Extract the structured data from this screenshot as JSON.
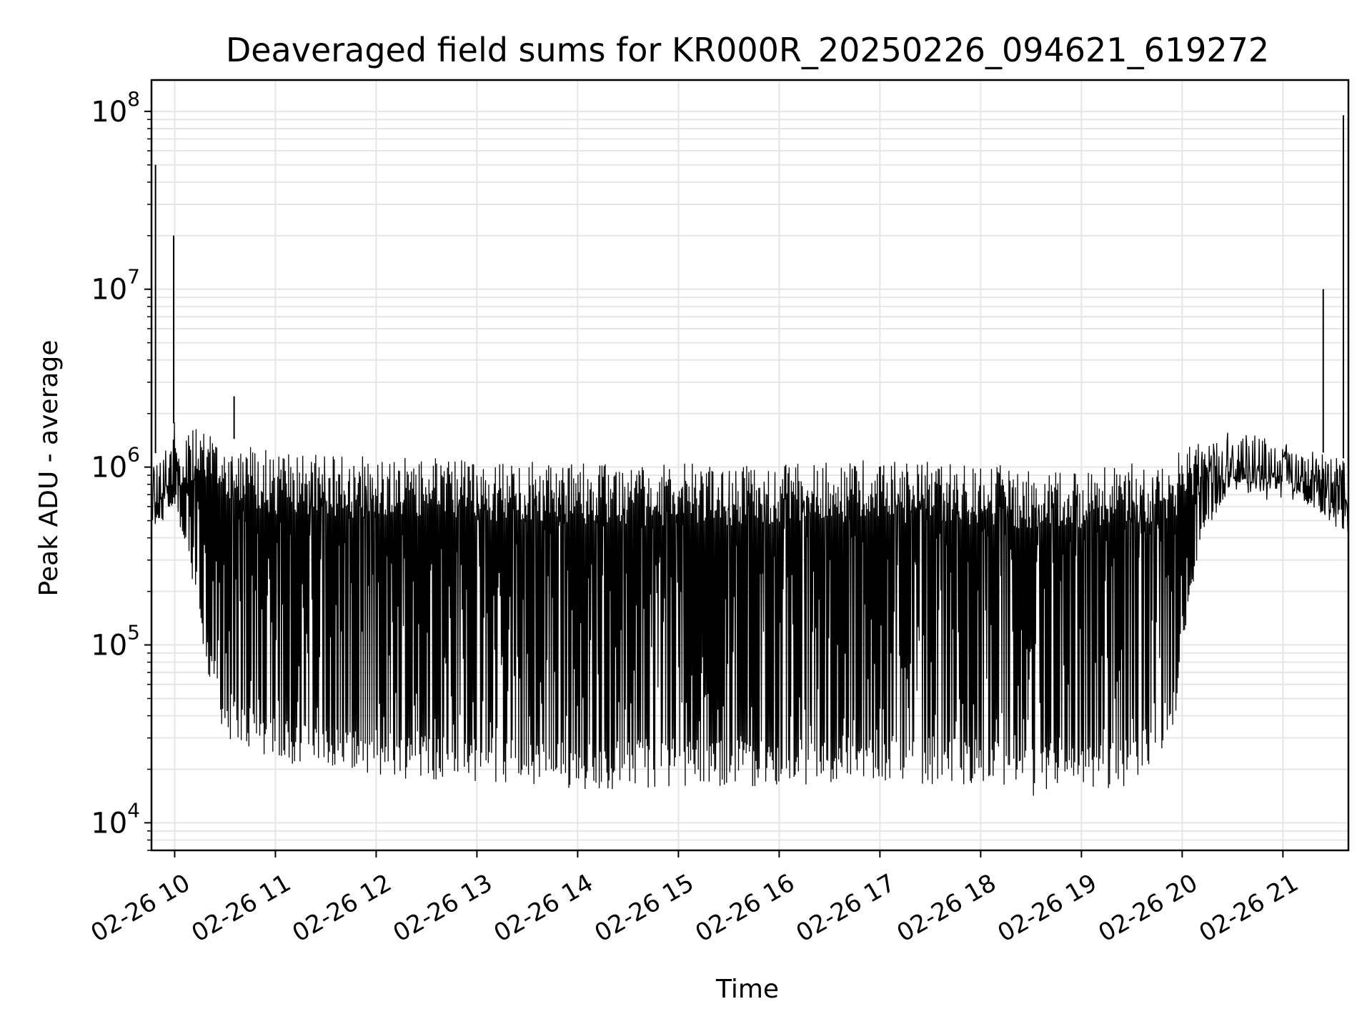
{
  "chart_data": {
    "type": "line",
    "title": "Deaveraged field sums for KR000R_20250226_094621_619272",
    "xlabel": "Time",
    "ylabel": "Peak ADU - average",
    "yscale": "log",
    "ylim": [
      7000,
      150000000
    ],
    "xlim_hours": [
      9.77,
      21.65
    ],
    "grid": true,
    "line_color": "#000000",
    "grid_color": "#e6e6e6",
    "x_ticks": [
      {
        "label": "02-26 10",
        "hour": 10
      },
      {
        "label": "02-26 11",
        "hour": 11
      },
      {
        "label": "02-26 12",
        "hour": 12
      },
      {
        "label": "02-26 13",
        "hour": 13
      },
      {
        "label": "02-26 14",
        "hour": 14
      },
      {
        "label": "02-26 15",
        "hour": 15
      },
      {
        "label": "02-26 16",
        "hour": 16
      },
      {
        "label": "02-26 17",
        "hour": 17
      },
      {
        "label": "02-26 18",
        "hour": 18
      },
      {
        "label": "02-26 19",
        "hour": 19
      },
      {
        "label": "02-26 20",
        "hour": 20
      },
      {
        "label": "02-26 21",
        "hour": 21
      }
    ],
    "y_ticks": [
      {
        "base": "10",
        "exp": "4",
        "value": 10000
      },
      {
        "base": "10",
        "exp": "5",
        "value": 100000
      },
      {
        "base": "10",
        "exp": "6",
        "value": 1000000
      },
      {
        "base": "10",
        "exp": "7",
        "value": 10000000
      },
      {
        "base": "10",
        "exp": "8",
        "value": 100000000
      }
    ],
    "series": [
      {
        "name": "deaveraged field sum",
        "envelope": [
          {
            "hour": 9.77,
            "max": 1100000,
            "min": 400000
          },
          {
            "hour": 10.0,
            "max": 1800000,
            "min": 600000
          },
          {
            "hour": 10.15,
            "max": 1600000,
            "min": 250000
          },
          {
            "hour": 10.3,
            "max": 1700000,
            "min": 80000
          },
          {
            "hour": 10.5,
            "max": 1500000,
            "min": 30000
          },
          {
            "hour": 11.0,
            "max": 1200000,
            "min": 22000
          },
          {
            "hour": 12.0,
            "max": 1150000,
            "min": 18000
          },
          {
            "hour": 13.0,
            "max": 1100000,
            "min": 17000
          },
          {
            "hour": 14.0,
            "max": 1050000,
            "min": 15000
          },
          {
            "hour": 15.0,
            "max": 1050000,
            "min": 16000
          },
          {
            "hour": 16.0,
            "max": 1050000,
            "min": 16000
          },
          {
            "hour": 17.0,
            "max": 1100000,
            "min": 17000
          },
          {
            "hour": 18.0,
            "max": 1050000,
            "min": 16000
          },
          {
            "hour": 18.5,
            "max": 1000000,
            "min": 14000
          },
          {
            "hour": 19.0,
            "max": 1000000,
            "min": 15000
          },
          {
            "hour": 19.5,
            "max": 1050000,
            "min": 16000
          },
          {
            "hour": 19.9,
            "max": 1100000,
            "min": 25000
          },
          {
            "hour": 20.0,
            "max": 1300000,
            "min": 100000
          },
          {
            "hour": 20.2,
            "max": 1500000,
            "min": 400000
          },
          {
            "hour": 20.5,
            "max": 1600000,
            "min": 800000
          },
          {
            "hour": 21.0,
            "max": 1400000,
            "min": 800000
          },
          {
            "hour": 21.65,
            "max": 1100000,
            "min": 400000
          }
        ],
        "spikes": [
          {
            "hour": 9.81,
            "value": 50000000
          },
          {
            "hour": 9.99,
            "value": 20000000
          },
          {
            "hour": 10.59,
            "value": 2500000
          },
          {
            "hour": 21.4,
            "value": 10000000
          },
          {
            "hour": 21.6,
            "value": 95000000
          }
        ]
      }
    ]
  }
}
